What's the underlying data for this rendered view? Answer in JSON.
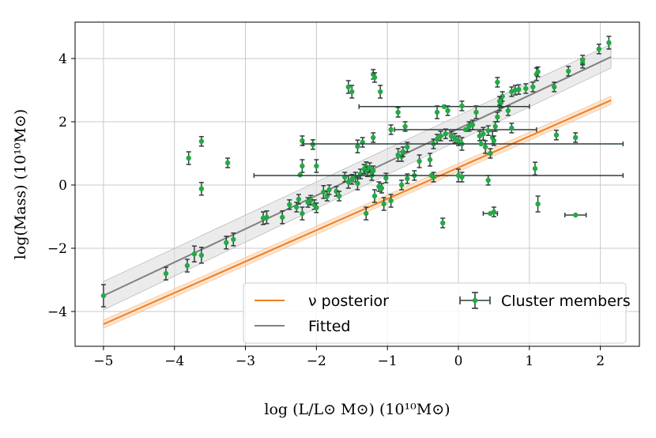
{
  "chart_data": {
    "type": "scatter",
    "xlabel": "log (L/L⊙ M⊙) (10¹⁰M⊙)",
    "ylabel": "log(Mass) (10¹⁰M⊙)",
    "xlim": [
      -5.4,
      2.55
    ],
    "ylim": [
      -5.1,
      5.15
    ],
    "xticks": [
      -5,
      -4,
      -3,
      -2,
      -1,
      0,
      1,
      2
    ],
    "yticks": [
      -4,
      -2,
      0,
      2,
      4
    ],
    "xtick_labels": [
      "−5",
      "−4",
      "−3",
      "−2",
      "−1",
      "0",
      "1",
      "2"
    ],
    "ytick_labels": [
      "−4",
      "−2",
      "0",
      "2",
      "4"
    ],
    "grid": true,
    "legend_position": "lower-right",
    "colors": {
      "points": "#22aa44",
      "errorbars": "#2f3f3f",
      "posterior": "#f07f20",
      "fitted": "#808080",
      "band": "#dddddd"
    },
    "series": [
      {
        "name": "ν posterior",
        "kind": "line",
        "x": [
          -5,
          2.15
        ],
        "y": [
          -4.4,
          2.68
        ],
        "band_width": 0.13
      },
      {
        "name": "Fitted",
        "kind": "line",
        "x": [
          -5,
          2.15
        ],
        "y": [
          -3.5,
          4.05
        ],
        "band_lower": [
          -3.95,
          3.7
        ],
        "band_upper": [
          -3.05,
          4.45
        ]
      },
      {
        "name": "Cluster members",
        "kind": "errorbar",
        "points": [
          {
            "x": -5.0,
            "y": -3.5,
            "yerr": 0.35
          },
          {
            "x": -4.12,
            "y": -2.8,
            "yerr": 0.2
          },
          {
            "x": -3.82,
            "y": -2.55,
            "yerr": 0.2
          },
          {
            "x": -3.72,
            "y": -2.18,
            "yerr": 0.25
          },
          {
            "x": -3.62,
            "y": -2.22,
            "yerr": 0.25
          },
          {
            "x": -3.27,
            "y": -1.82,
            "yerr": 0.2
          },
          {
            "x": -3.17,
            "y": -1.72,
            "yerr": 0.2
          },
          {
            "x": -3.8,
            "y": 0.85,
            "yerr": 0.2
          },
          {
            "x": -3.62,
            "y": 1.38,
            "yerr": 0.15
          },
          {
            "x": -3.62,
            "y": -0.12,
            "yerr": 0.2
          },
          {
            "x": -3.25,
            "y": 0.7,
            "yerr": 0.15
          },
          {
            "x": -2.75,
            "y": -1.05,
            "yerr": 0.2
          },
          {
            "x": -2.7,
            "y": -1.02,
            "yerr": 0.2
          },
          {
            "x": -2.48,
            "y": -1.02,
            "yerr": 0.2
          },
          {
            "x": -2.38,
            "y": -0.62,
            "yerr": 0.15
          },
          {
            "x": -2.28,
            "y": -0.7,
            "yerr": 0.15
          },
          {
            "x": -2.2,
            "y": -0.9,
            "yerr": 0.2
          },
          {
            "x": -2.25,
            "y": -0.45,
            "yerr": 0.15
          },
          {
            "x": -2.2,
            "y": 0.6,
            "yerr": 0.2
          },
          {
            "x": -2.23,
            "y": 0.32,
            "xerr": [
              0.0,
              0.0
            ]
          },
          {
            "x": -2.2,
            "y": 1.4,
            "yerr": 0.15
          },
          {
            "x": -2.12,
            "y": -0.55,
            "yerr": 0.15
          },
          {
            "x": -2.08,
            "y": -0.48,
            "yerr": 0.15
          },
          {
            "x": -2.03,
            "y": -0.62,
            "yerr": 0.15
          },
          {
            "x": -2.0,
            "y": -0.72,
            "yerr": 0.15
          },
          {
            "x": -2.05,
            "y": 1.28,
            "yerr": 0.15
          },
          {
            "x": -2.0,
            "y": 0.6,
            "yerr": 0.2
          },
          {
            "x": -1.9,
            "y": -0.22,
            "yerr": 0.2
          },
          {
            "x": -1.85,
            "y": -0.35,
            "yerr": 0.15
          },
          {
            "x": -1.82,
            "y": -0.15,
            "yerr": 0.15
          },
          {
            "x": -1.72,
            "y": -0.2,
            "yerr": 0.15
          },
          {
            "x": -1.68,
            "y": -0.35,
            "yerr": 0.15
          },
          {
            "x": -1.6,
            "y": 0.25,
            "yerr": 0.15
          },
          {
            "x": -1.55,
            "y": 0.1,
            "yerr": 0.2
          },
          {
            "x": -1.5,
            "y": 0.18,
            "yerr": 0.15
          },
          {
            "x": -1.45,
            "y": 0.25,
            "yerr": 0.15
          },
          {
            "x": -1.42,
            "y": 0.05,
            "yerr": 0.2
          },
          {
            "x": -1.38,
            "y": 0.35,
            "yerr": 0.15
          },
          {
            "x": -1.33,
            "y": 0.5,
            "yerr": 0.15
          },
          {
            "x": -1.3,
            "y": 0.58,
            "yerr": 0.15
          },
          {
            "x": -1.28,
            "y": 0.42,
            "yerr": 0.15
          },
          {
            "x": -1.25,
            "y": 0.55,
            "yerr": 0.15
          },
          {
            "x": -1.22,
            "y": 0.3,
            "yerr": 0.15
          },
          {
            "x": -1.2,
            "y": 0.45,
            "yerr": 0.15
          },
          {
            "x": -1.3,
            "y": -0.9,
            "yerr": 0.2
          },
          {
            "x": -1.18,
            "y": -0.35,
            "yerr": 0.2
          },
          {
            "x": -1.12,
            "y": -0.05,
            "yerr": 0.15
          },
          {
            "x": -1.08,
            "y": -0.1,
            "yerr": 0.15
          },
          {
            "x": -1.05,
            "y": -0.6,
            "yerr": 0.2
          },
          {
            "x": -1.02,
            "y": 0.22,
            "yerr": 0.15
          },
          {
            "x": -0.95,
            "y": -0.5,
            "yerr": 0.2
          },
          {
            "x": -1.42,
            "y": 1.22,
            "yerr": 0.2
          },
          {
            "x": -1.35,
            "y": 1.35,
            "yerr": 0.15
          },
          {
            "x": -1.2,
            "y": 1.5,
            "yerr": 0.15
          },
          {
            "x": -1.1,
            "y": 2.95,
            "yerr": 0.2
          },
          {
            "x": -1.55,
            "y": 3.1,
            "yerr": 0.2
          },
          {
            "x": -1.5,
            "y": 2.95,
            "yerr": 0.2
          },
          {
            "x": -1.2,
            "y": 3.5,
            "yerr": 0.15
          },
          {
            "x": -1.18,
            "y": 3.4,
            "yerr": 0.15
          },
          {
            "x": -0.95,
            "y": 1.75,
            "yerr": 0.15
          },
          {
            "x": -0.85,
            "y": 0.95,
            "yerr": 0.2
          },
          {
            "x": -0.8,
            "y": 0.9,
            "yerr": 0.15
          },
          {
            "x": -0.78,
            "y": 1.05,
            "yerr": 0.15
          },
          {
            "x": -0.72,
            "y": 1.2,
            "yerr": 0.15
          },
          {
            "x": -0.85,
            "y": 2.3,
            "yerr": 0.15
          },
          {
            "x": -0.75,
            "y": 1.85,
            "yerr": 0.15
          },
          {
            "x": -0.8,
            "y": 0.0,
            "yerr": 0.15
          },
          {
            "x": -0.72,
            "y": 0.2,
            "yerr": 0.15
          },
          {
            "x": -0.62,
            "y": 0.3,
            "yerr": 0.15
          },
          {
            "x": -0.55,
            "y": 0.75,
            "yerr": 0.2
          },
          {
            "x": -0.4,
            "y": 0.8,
            "yerr": 0.2
          },
          {
            "x": -0.35,
            "y": 1.3,
            "yerr": 0.15
          },
          {
            "x": -0.3,
            "y": 1.45,
            "yerr": 0.15
          },
          {
            "x": -0.25,
            "y": 1.55,
            "yerr": 0.15
          },
          {
            "x": -0.18,
            "y": 1.62,
            "yerr": 0.15
          },
          {
            "x": -0.38,
            "y": 0.3,
            "xerr": [
              2.5,
              2.7
            ]
          },
          {
            "x": -0.35,
            "y": 0.25,
            "yerr": 0.15
          },
          {
            "x": -0.3,
            "y": 2.3,
            "yerr": 0.2
          },
          {
            "x": -0.2,
            "y": 2.48,
            "xerr": [
              1.2,
              1.2
            ]
          },
          {
            "x": -0.15,
            "y": 2.35,
            "yerr": 0.15
          },
          {
            "x": -0.22,
            "y": -1.2,
            "yerr": 0.15
          },
          {
            "x": -0.1,
            "y": 1.55,
            "yerr": 0.15
          },
          {
            "x": -0.05,
            "y": 1.48,
            "yerr": 0.15
          },
          {
            "x": 0.0,
            "y": 1.4,
            "yerr": 0.15
          },
          {
            "x": 0.05,
            "y": 1.3,
            "yerr": 0.2
          },
          {
            "x": 0.1,
            "y": 1.75,
            "xerr": [
              1.0,
              1.0
            ]
          },
          {
            "x": 0.15,
            "y": 1.85,
            "yerr": 0.15
          },
          {
            "x": 0.2,
            "y": 1.9,
            "yerr": 0.15
          },
          {
            "x": 0.05,
            "y": 2.5,
            "yerr": 0.15
          },
          {
            "x": 0.25,
            "y": 2.3,
            "yerr": 0.2
          },
          {
            "x": 0.3,
            "y": 1.55,
            "yerr": 0.15
          },
          {
            "x": 0.35,
            "y": 1.62,
            "yerr": 0.2
          },
          {
            "x": 0.32,
            "y": 1.3,
            "xerr": [
              2.5,
              2.0
            ]
          },
          {
            "x": 0.38,
            "y": 1.2,
            "yerr": 0.2
          },
          {
            "x": 0.42,
            "y": 1.72,
            "yerr": 0.15
          },
          {
            "x": 0.45,
            "y": 1.0,
            "yerr": 0.15
          },
          {
            "x": 0.48,
            "y": 1.5,
            "yerr": 0.2
          },
          {
            "x": 0.5,
            "y": 1.4,
            "yerr": 0.15
          },
          {
            "x": 0.52,
            "y": 1.85,
            "yerr": 0.15
          },
          {
            "x": 0.55,
            "y": 2.15,
            "yerr": 0.15
          },
          {
            "x": 0.58,
            "y": 2.5,
            "yerr": 0.15
          },
          {
            "x": 0.6,
            "y": 2.6,
            "yerr": 0.15
          },
          {
            "x": 0.55,
            "y": 3.25,
            "yerr": 0.15
          },
          {
            "x": 0.62,
            "y": 2.8,
            "yerr": 0.15
          },
          {
            "x": 0.7,
            "y": 2.35,
            "yerr": 0.15
          },
          {
            "x": 0.75,
            "y": 2.95,
            "yerr": 0.15
          },
          {
            "x": 0.8,
            "y": 3.0,
            "yerr": 0.15
          },
          {
            "x": 0.85,
            "y": 3.02,
            "yerr": 0.15
          },
          {
            "x": 0.95,
            "y": 3.05,
            "yerr": 0.15
          },
          {
            "x": 1.05,
            "y": 3.1,
            "yerr": 0.15
          },
          {
            "x": 1.1,
            "y": 3.5,
            "yerr": 0.2
          },
          {
            "x": 1.12,
            "y": 3.58,
            "yerr": 0.15
          },
          {
            "x": 0.42,
            "y": 0.15,
            "yerr": 0.15
          },
          {
            "x": 0.45,
            "y": -0.9,
            "xerr": [
              0.1,
              0.1
            ]
          },
          {
            "x": 0.5,
            "y": -0.85,
            "yerr": 0.15
          },
          {
            "x": 0.0,
            "y": 0.3,
            "yerr": 0.2
          },
          {
            "x": 0.05,
            "y": 0.25,
            "yerr": 0.15
          },
          {
            "x": 0.75,
            "y": 1.8,
            "yerr": 0.15
          },
          {
            "x": 1.08,
            "y": 0.52,
            "yerr": 0.2
          },
          {
            "x": 1.12,
            "y": -0.6,
            "yerr": 0.25
          },
          {
            "x": 1.35,
            "y": 3.1,
            "yerr": 0.15
          },
          {
            "x": 1.38,
            "y": 1.58,
            "yerr": 0.15
          },
          {
            "x": 1.55,
            "y": 3.6,
            "yerr": 0.15
          },
          {
            "x": 1.65,
            "y": 1.5,
            "yerr": 0.15
          },
          {
            "x": 1.65,
            "y": -0.95,
            "xerr": [
              0.15,
              0.15
            ]
          },
          {
            "x": 1.75,
            "y": 3.85,
            "yerr": 0.15
          },
          {
            "x": 1.75,
            "y": 3.95,
            "yerr": 0.15
          },
          {
            "x": 1.98,
            "y": 4.3,
            "yerr": 0.15
          },
          {
            "x": 2.12,
            "y": 4.5,
            "yerr": 0.2
          },
          {
            "x": 0.58,
            "y": 2.65,
            "yerr": 0.15
          }
        ]
      }
    ]
  }
}
